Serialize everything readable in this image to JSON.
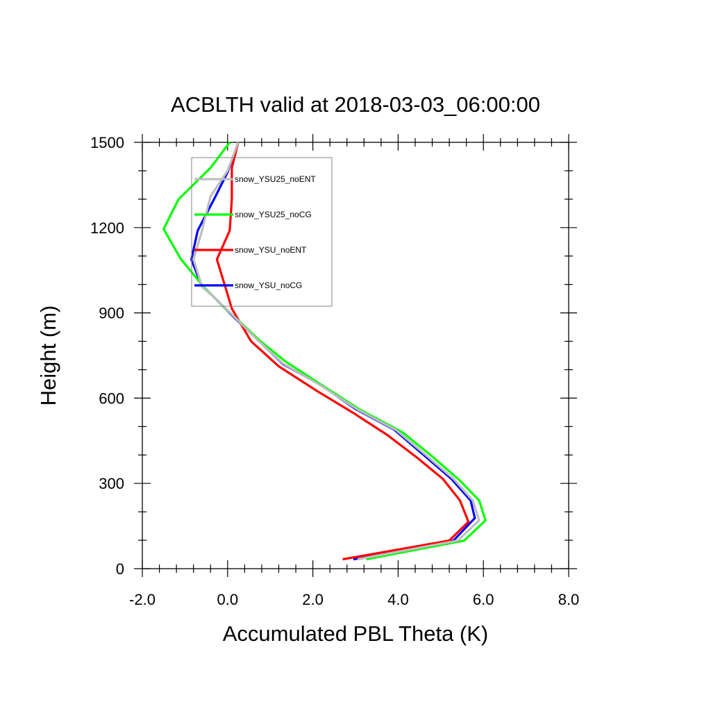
{
  "chart_data": {
    "type": "line",
    "title": "ACBLTH valid at 2018-03-03_06:00:00",
    "xlabel": "Accumulated PBL Theta (K)",
    "ylabel": "Height (m)",
    "xlim": [
      -2.0,
      8.0
    ],
    "ylim": [
      0,
      1500
    ],
    "x_ticks": [
      -2.0,
      0.0,
      2.0,
      4.0,
      6.0,
      8.0
    ],
    "x_tick_labels": [
      "-2.0",
      "0.0",
      "2.0",
      "4.0",
      "6.0",
      "8.0"
    ],
    "y_ticks": [
      0,
      300,
      600,
      900,
      1200,
      1500
    ],
    "y_tick_labels": [
      "0",
      "300",
      "600",
      "900",
      "1200",
      "1500"
    ],
    "grid": false,
    "legend_position": "top-left",
    "series": [
      {
        "name": "snow_YSU_noCG",
        "color": "#0000ff",
        "points": [
          [
            2.95,
            33
          ],
          [
            5.3,
            99
          ],
          [
            5.8,
            178
          ],
          [
            5.7,
            240
          ],
          [
            5.25,
            316
          ],
          [
            4.6,
            400
          ],
          [
            3.9,
            490
          ],
          [
            3.0,
            562
          ],
          [
            2.2,
            645
          ],
          [
            1.3,
            720
          ],
          [
            0.7,
            806
          ],
          [
            0.1,
            892
          ],
          [
            -0.35,
            960
          ],
          [
            -0.6,
            992
          ],
          [
            -0.85,
            1088
          ],
          [
            -0.7,
            1190
          ],
          [
            -0.3,
            1305
          ],
          [
            0.0,
            1395
          ],
          [
            0.25,
            1500
          ]
        ]
      },
      {
        "name": "snow_YSU_noENT",
        "color": "#ff0000",
        "points": [
          [
            2.7,
            33
          ],
          [
            5.2,
            99
          ],
          [
            5.65,
            165
          ],
          [
            5.45,
            240
          ],
          [
            5.05,
            316
          ],
          [
            4.45,
            390
          ],
          [
            3.75,
            470
          ],
          [
            2.95,
            548
          ],
          [
            2.1,
            625
          ],
          [
            1.2,
            712
          ],
          [
            0.55,
            800
          ],
          [
            0.1,
            915
          ],
          [
            -0.05,
            990
          ],
          [
            -0.25,
            1088
          ],
          [
            0.05,
            1190
          ],
          [
            0.1,
            1300
          ],
          [
            0.1,
            1410
          ],
          [
            0.25,
            1500
          ]
        ]
      },
      {
        "name": "snow_YSU25_noCG",
        "color": "#00ff00",
        "points": [
          [
            3.25,
            33
          ],
          [
            5.55,
            99
          ],
          [
            6.05,
            170
          ],
          [
            5.9,
            240
          ],
          [
            5.45,
            310
          ],
          [
            4.8,
            395
          ],
          [
            4.1,
            480
          ],
          [
            3.1,
            560
          ],
          [
            2.25,
            642
          ],
          [
            1.35,
            730
          ],
          [
            0.75,
            803
          ],
          [
            0.35,
            860
          ],
          [
            -0.05,
            915
          ],
          [
            -0.55,
            990
          ],
          [
            -1.1,
            1090
          ],
          [
            -1.5,
            1195
          ],
          [
            -1.15,
            1300
          ],
          [
            -0.4,
            1410
          ],
          [
            0.05,
            1500
          ]
        ]
      },
      {
        "name": "snow_YSU25_noENT",
        "color": "#bebebe",
        "points": [
          [
            3.05,
            33
          ],
          [
            5.4,
            99
          ],
          [
            5.9,
            170
          ],
          [
            5.75,
            240
          ],
          [
            5.3,
            316
          ],
          [
            4.65,
            400
          ],
          [
            3.95,
            488
          ],
          [
            3.05,
            560
          ],
          [
            2.2,
            643
          ],
          [
            1.3,
            722
          ],
          [
            0.7,
            805
          ],
          [
            0.1,
            895
          ],
          [
            -0.35,
            960
          ],
          [
            -0.6,
            992
          ],
          [
            -0.8,
            1088
          ],
          [
            -0.6,
            1190
          ],
          [
            -0.4,
            1310
          ],
          [
            0.0,
            1400
          ],
          [
            0.25,
            1500
          ]
        ]
      }
    ],
    "legend_entries": [
      {
        "name": "snow_YSU25_noENT",
        "color": "#bebebe"
      },
      {
        "name": "snow_YSU25_noCG",
        "color": "#00ff00"
      },
      {
        "name": "snow_YSU_noENT",
        "color": "#ff0000"
      },
      {
        "name": "snow_YSU_noCG",
        "color": "#0000ff"
      }
    ]
  }
}
